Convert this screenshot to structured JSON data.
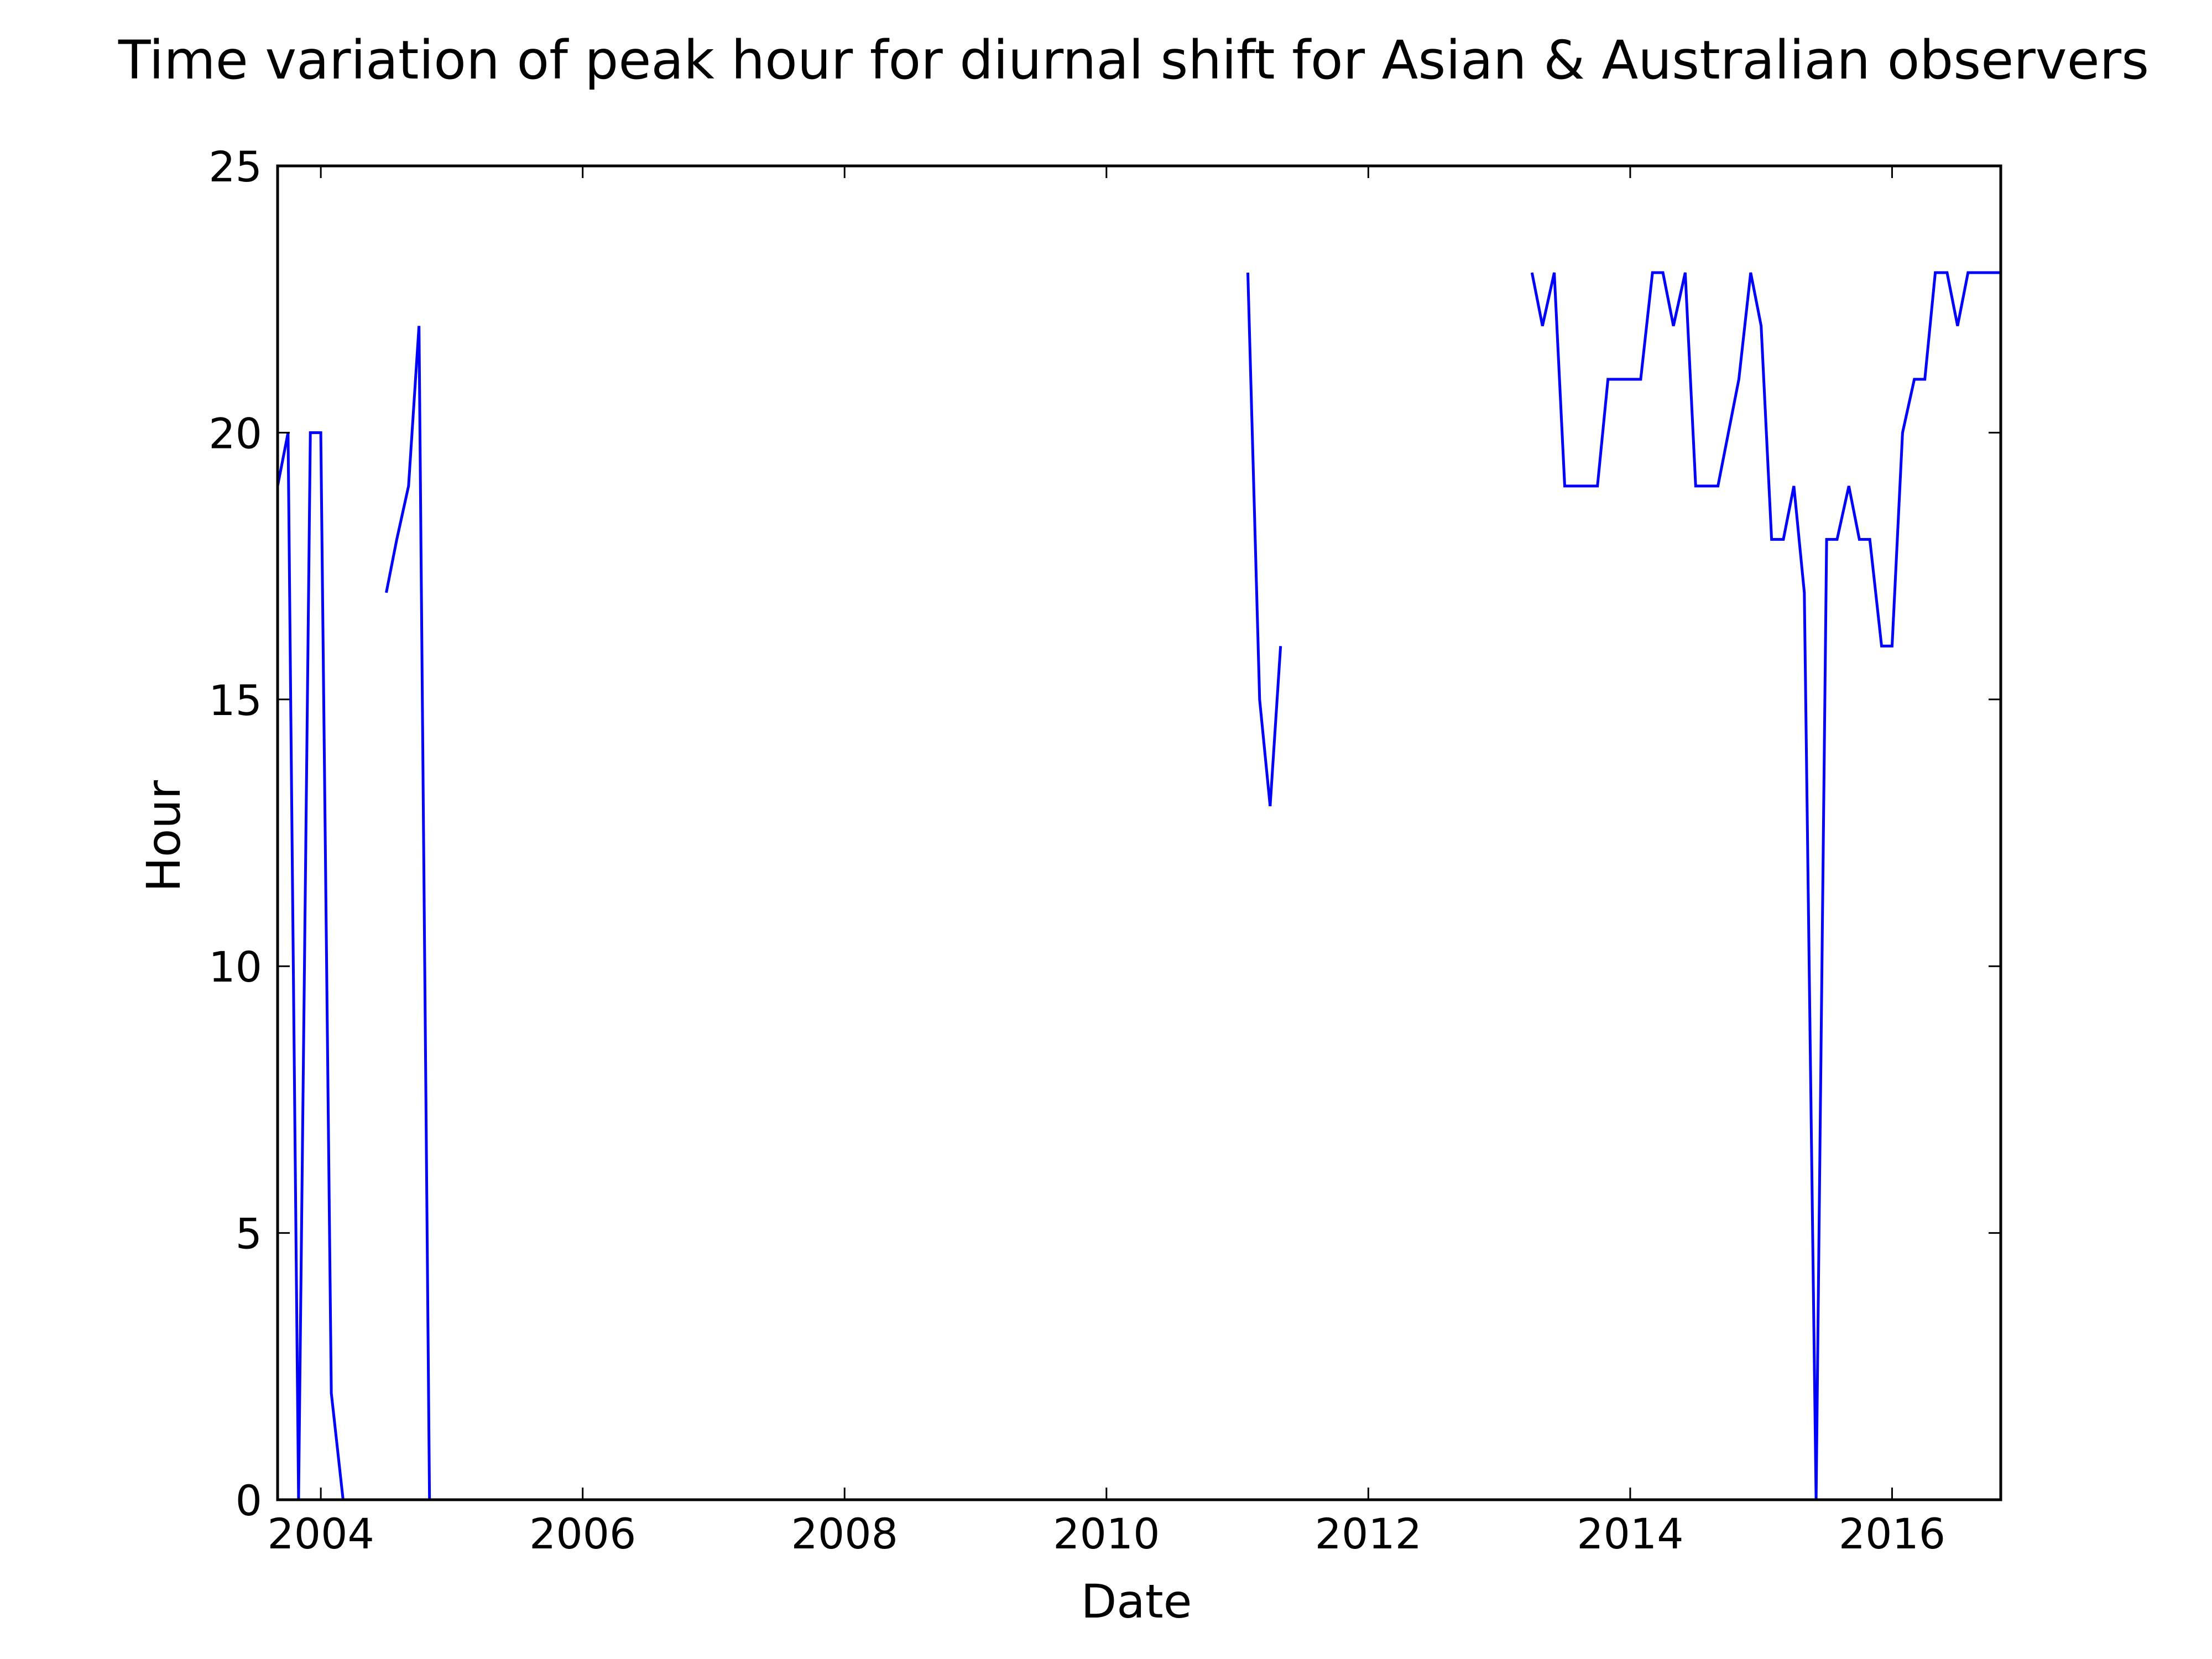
{
  "chart_data": {
    "type": "line",
    "title": "Time variation of peak hour for diurnal shift for Asian & Australian observers",
    "xlabel": "Date",
    "ylabel": "Hour",
    "xlim": [
      2003.67,
      2016.83
    ],
    "ylim": [
      0,
      25
    ],
    "x_ticks": [
      {
        "value": 2004,
        "label": "2004"
      },
      {
        "value": 2006,
        "label": "2006"
      },
      {
        "value": 2008,
        "label": "2008"
      },
      {
        "value": 2010,
        "label": "2010"
      },
      {
        "value": 2012,
        "label": "2012"
      },
      {
        "value": 2014,
        "label": "2014"
      },
      {
        "value": 2016,
        "label": "2016"
      }
    ],
    "y_ticks": [
      {
        "value": 0,
        "label": "0"
      },
      {
        "value": 5,
        "label": "5"
      },
      {
        "value": 10,
        "label": "10"
      },
      {
        "value": 15,
        "label": "15"
      },
      {
        "value": 20,
        "label": "20"
      },
      {
        "value": 25,
        "label": "25"
      }
    ],
    "grid": false,
    "line_color": "#0000ff",
    "series": [
      {
        "segments": [
          [
            [
              2003.67,
              19
            ],
            [
              2003.75,
              20
            ],
            [
              2003.83,
              0
            ],
            [
              2003.92,
              20
            ],
            [
              2004.0,
              20
            ],
            [
              2004.08,
              2
            ],
            [
              2004.17,
              0
            ]
          ],
          [
            [
              2004.5,
              17
            ],
            [
              2004.58,
              18
            ],
            [
              2004.67,
              19
            ],
            [
              2004.75,
              22
            ],
            [
              2004.83,
              0
            ]
          ],
          [
            [
              2011.08,
              23
            ],
            [
              2011.17,
              15
            ],
            [
              2011.25,
              13
            ],
            [
              2011.33,
              16
            ]
          ],
          [
            [
              2013.25,
              23
            ],
            [
              2013.33,
              22
            ],
            [
              2013.42,
              23
            ],
            [
              2013.5,
              19
            ],
            [
              2013.58,
              19
            ],
            [
              2013.67,
              19
            ],
            [
              2013.75,
              19
            ],
            [
              2013.83,
              21
            ],
            [
              2013.92,
              21
            ],
            [
              2014.0,
              21
            ],
            [
              2014.08,
              21
            ],
            [
              2014.17,
              23
            ],
            [
              2014.25,
              23
            ],
            [
              2014.33,
              22
            ],
            [
              2014.42,
              23
            ],
            [
              2014.5,
              19
            ],
            [
              2014.58,
              19
            ],
            [
              2014.67,
              19
            ],
            [
              2014.75,
              20
            ],
            [
              2014.83,
              21
            ],
            [
              2014.92,
              23
            ],
            [
              2015.0,
              22
            ],
            [
              2015.08,
              18
            ],
            [
              2015.17,
              18
            ],
            [
              2015.25,
              19
            ],
            [
              2015.33,
              17
            ],
            [
              2015.42,
              0
            ],
            [
              2015.5,
              18
            ],
            [
              2015.58,
              18
            ],
            [
              2015.67,
              19
            ],
            [
              2015.75,
              18
            ],
            [
              2015.83,
              18
            ],
            [
              2015.92,
              16
            ],
            [
              2016.0,
              16
            ],
            [
              2016.08,
              20
            ],
            [
              2016.17,
              21
            ],
            [
              2016.25,
              21
            ],
            [
              2016.33,
              23
            ],
            [
              2016.42,
              23
            ],
            [
              2016.5,
              22
            ],
            [
              2016.58,
              23
            ],
            [
              2016.67,
              23
            ],
            [
              2016.75,
              23
            ],
            [
              2016.83,
              23
            ]
          ]
        ]
      }
    ]
  }
}
